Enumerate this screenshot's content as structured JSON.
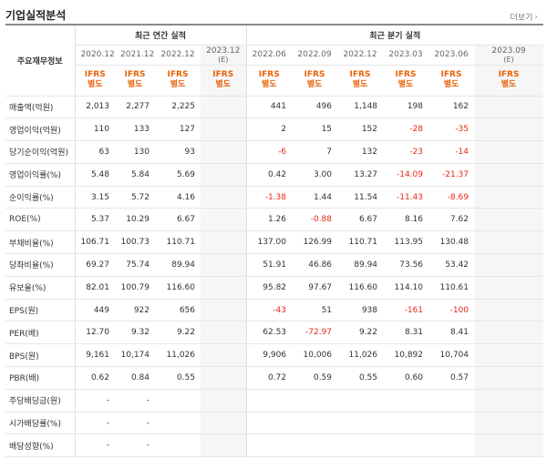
{
  "title": "기업실적분석",
  "more": {
    "label": "더보기",
    "icon": "chevron-right-icon"
  },
  "colors": {
    "negative": "#e8271b",
    "ifrs": "#e8630a",
    "estimate_bg": "#f6f6f6"
  },
  "table": {
    "label_header": "주요재무정보",
    "annual_header": "최근 연간 실적",
    "quarter_header": "최근 분기 실적",
    "annual_periods": [
      {
        "period": "2020.12",
        "ifrs": "IFRS",
        "basis": "별도"
      },
      {
        "period": "2021.12",
        "ifrs": "IFRS",
        "basis": "별도"
      },
      {
        "period": "2022.12",
        "ifrs": "IFRS",
        "basis": "별도"
      },
      {
        "period": "2023.12",
        "estimate": "(E)",
        "ifrs": "IFRS",
        "basis": "별도"
      }
    ],
    "quarter_periods": [
      {
        "period": "2022.06",
        "ifrs": "IFRS",
        "basis": "별도"
      },
      {
        "period": "2022.09",
        "ifrs": "IFRS",
        "basis": "별도"
      },
      {
        "period": "2022.12",
        "ifrs": "IFRS",
        "basis": "별도"
      },
      {
        "period": "2023.03",
        "ifrs": "IFRS",
        "basis": "별도"
      },
      {
        "period": "2023.06",
        "ifrs": "IFRS",
        "basis": "별도"
      },
      {
        "period": "2023.09",
        "estimate": "(E)",
        "ifrs": "IFRS",
        "basis": "별도"
      }
    ],
    "rows": [
      {
        "label": "매출액(억원)",
        "annual": [
          "2,013",
          "2,277",
          "2,225",
          ""
        ],
        "quarter": [
          "441",
          "496",
          "1,148",
          "198",
          "162",
          ""
        ]
      },
      {
        "label": "영업이익(억원)",
        "annual": [
          "110",
          "133",
          "127",
          ""
        ],
        "quarter": [
          "2",
          "15",
          "152",
          "-28",
          "-35",
          ""
        ]
      },
      {
        "label": "당기순이익(억원)",
        "annual": [
          "63",
          "130",
          "93",
          ""
        ],
        "quarter": [
          "-6",
          "7",
          "132",
          "-23",
          "-14",
          ""
        ]
      },
      {
        "label": "영업이익률(%)",
        "annual": [
          "5.48",
          "5.84",
          "5.69",
          ""
        ],
        "quarter": [
          "0.42",
          "3.00",
          "13.27",
          "-14.09",
          "-21.37",
          ""
        ]
      },
      {
        "label": "순이익률(%)",
        "annual": [
          "3.15",
          "5.72",
          "4.16",
          ""
        ],
        "quarter": [
          "-1.38",
          "1.44",
          "11.54",
          "-11.43",
          "-8.69",
          ""
        ]
      },
      {
        "label": "ROE(%)",
        "annual": [
          "5.37",
          "10.29",
          "6.67",
          ""
        ],
        "quarter": [
          "1.26",
          "-0.88",
          "6.67",
          "8.16",
          "7.62",
          ""
        ]
      },
      {
        "label": "부채비율(%)",
        "annual": [
          "106.71",
          "100.73",
          "110.71",
          ""
        ],
        "quarter": [
          "137.00",
          "126.99",
          "110.71",
          "113.95",
          "130.48",
          ""
        ]
      },
      {
        "label": "당좌비율(%)",
        "annual": [
          "69.27",
          "75.74",
          "89.94",
          ""
        ],
        "quarter": [
          "51.91",
          "46.86",
          "89.94",
          "73.56",
          "53.42",
          ""
        ]
      },
      {
        "label": "유보율(%)",
        "annual": [
          "82.01",
          "100.79",
          "116.60",
          ""
        ],
        "quarter": [
          "95.82",
          "97.67",
          "116.60",
          "114.10",
          "110.61",
          ""
        ]
      },
      {
        "label": "EPS(원)",
        "annual": [
          "449",
          "922",
          "656",
          ""
        ],
        "quarter": [
          "-43",
          "51",
          "938",
          "-161",
          "-100",
          ""
        ]
      },
      {
        "label": "PER(배)",
        "annual": [
          "12.70",
          "9.32",
          "9.22",
          ""
        ],
        "quarter": [
          "62.53",
          "-72.97",
          "9.22",
          "8.31",
          "8.41",
          ""
        ]
      },
      {
        "label": "BPS(원)",
        "annual": [
          "9,161",
          "10,174",
          "11,026",
          ""
        ],
        "quarter": [
          "9,906",
          "10,006",
          "11,026",
          "10,892",
          "10,704",
          ""
        ]
      },
      {
        "label": "PBR(배)",
        "annual": [
          "0.62",
          "0.84",
          "0.55",
          ""
        ],
        "quarter": [
          "0.72",
          "0.59",
          "0.55",
          "0.60",
          "0.57",
          ""
        ]
      },
      {
        "label": "주당배당금(원)",
        "annual": [
          "-",
          "-",
          "",
          ""
        ],
        "quarter": [
          "",
          "",
          "",
          "",
          "",
          ""
        ]
      },
      {
        "label": "시가배당률(%)",
        "annual": [
          "-",
          "-",
          "",
          ""
        ],
        "quarter": [
          "",
          "",
          "",
          "",
          "",
          ""
        ]
      },
      {
        "label": "배당성향(%)",
        "annual": [
          "-",
          "-",
          "",
          ""
        ],
        "quarter": [
          "",
          "",
          "",
          "",
          "",
          ""
        ]
      }
    ]
  }
}
